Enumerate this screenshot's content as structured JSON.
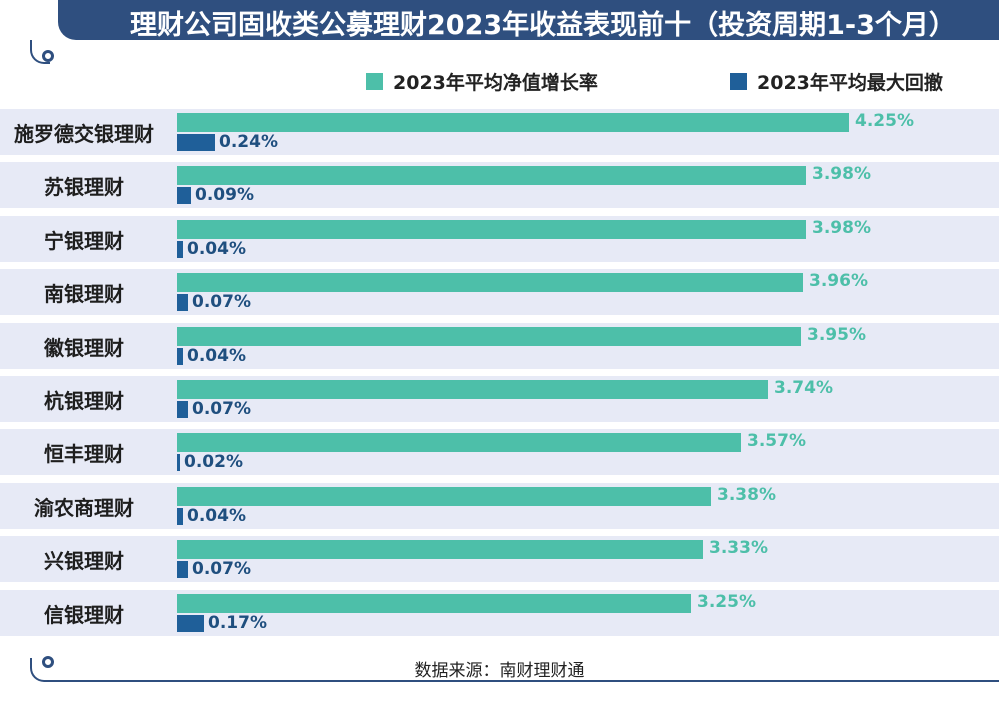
{
  "chart_data": {
    "type": "bar",
    "orientation": "horizontal",
    "title": "理财公司固收类公募理财2023年收益表现前十（投资周期1-3个月）",
    "categories": [
      "施罗德交银理财",
      "苏银理财",
      "宁银理财",
      "南银理财",
      "徽银理财",
      "杭银理财",
      "恒丰理财",
      "渝农商理财",
      "兴银理财",
      "信银理财"
    ],
    "series": [
      {
        "name": "2023年平均净值增长率",
        "color": "#4dbfa9",
        "label_color": "#4dbfa9",
        "values": [
          4.25,
          3.98,
          3.98,
          3.96,
          3.95,
          3.74,
          3.57,
          3.38,
          3.33,
          3.25
        ],
        "labels": [
          "4.25%",
          "3.98%",
          "3.98%",
          "3.96%",
          "3.95%",
          "3.74%",
          "3.57%",
          "3.38%",
          "3.33%",
          "3.25%"
        ]
      },
      {
        "name": "2023年平均最大回撤",
        "color": "#1f5f99",
        "label_color": "#1f4f7f",
        "values": [
          0.24,
          0.09,
          0.04,
          0.07,
          0.04,
          0.07,
          0.02,
          0.04,
          0.07,
          0.17
        ],
        "labels": [
          "0.24%",
          "0.09%",
          "0.04%",
          "0.07%",
          "0.04%",
          "0.07%",
          "0.02%",
          "0.04%",
          "0.07%",
          "0.17%"
        ]
      }
    ],
    "xlim": [
      0,
      4.25
    ],
    "grid": false,
    "legend_position": "top-right",
    "source": "数据来源：南财理财通"
  },
  "colors": {
    "title_bar": "#2f4f7f",
    "row_band": "#e7eaf6"
  }
}
